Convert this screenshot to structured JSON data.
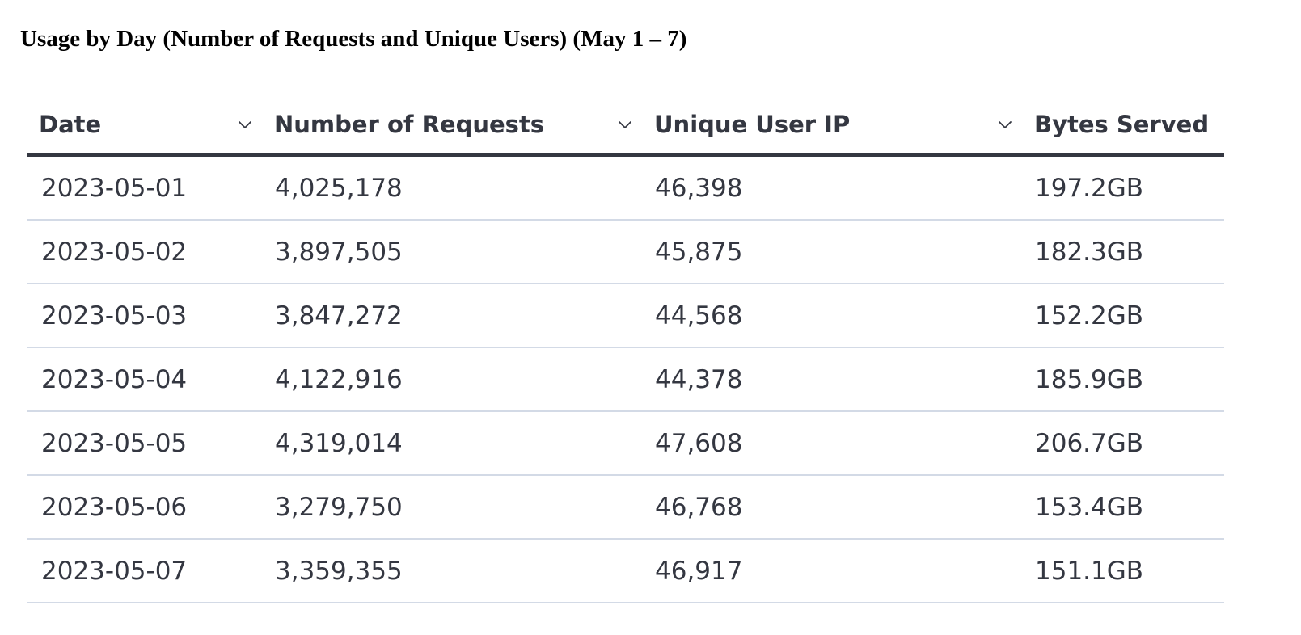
{
  "title": "Usage by Day (Number of Requests and Unique Users) (May 1 – 7)",
  "table": {
    "columns": [
      {
        "label": "Date",
        "sort_icon": "chevron-down-icon"
      },
      {
        "label": "Number of Requests",
        "sort_icon": "chevron-down-icon"
      },
      {
        "label": "Unique User IP",
        "sort_icon": "chevron-down-icon"
      },
      {
        "label": "Bytes Served"
      }
    ],
    "rows": [
      [
        "2023-05-01",
        "4,025,178",
        "46,398",
        "197.2GB"
      ],
      [
        "2023-05-02",
        "3,897,505",
        "45,875",
        "182.3GB"
      ],
      [
        "2023-05-03",
        "3,847,272",
        "44,568",
        "152.2GB"
      ],
      [
        "2023-05-04",
        "4,122,916",
        "44,378",
        "185.9GB"
      ],
      [
        "2023-05-05",
        "4,319,014",
        "47,608",
        "206.7GB"
      ],
      [
        "2023-05-06",
        "3,279,750",
        "46,768",
        "153.4GB"
      ],
      [
        "2023-05-07",
        "3,359,355",
        "46,917",
        "151.1GB"
      ]
    ]
  },
  "colors": {
    "text": "#343741",
    "header_rule": "#343741",
    "row_rule": "#d3dae6",
    "background": "#ffffff"
  }
}
